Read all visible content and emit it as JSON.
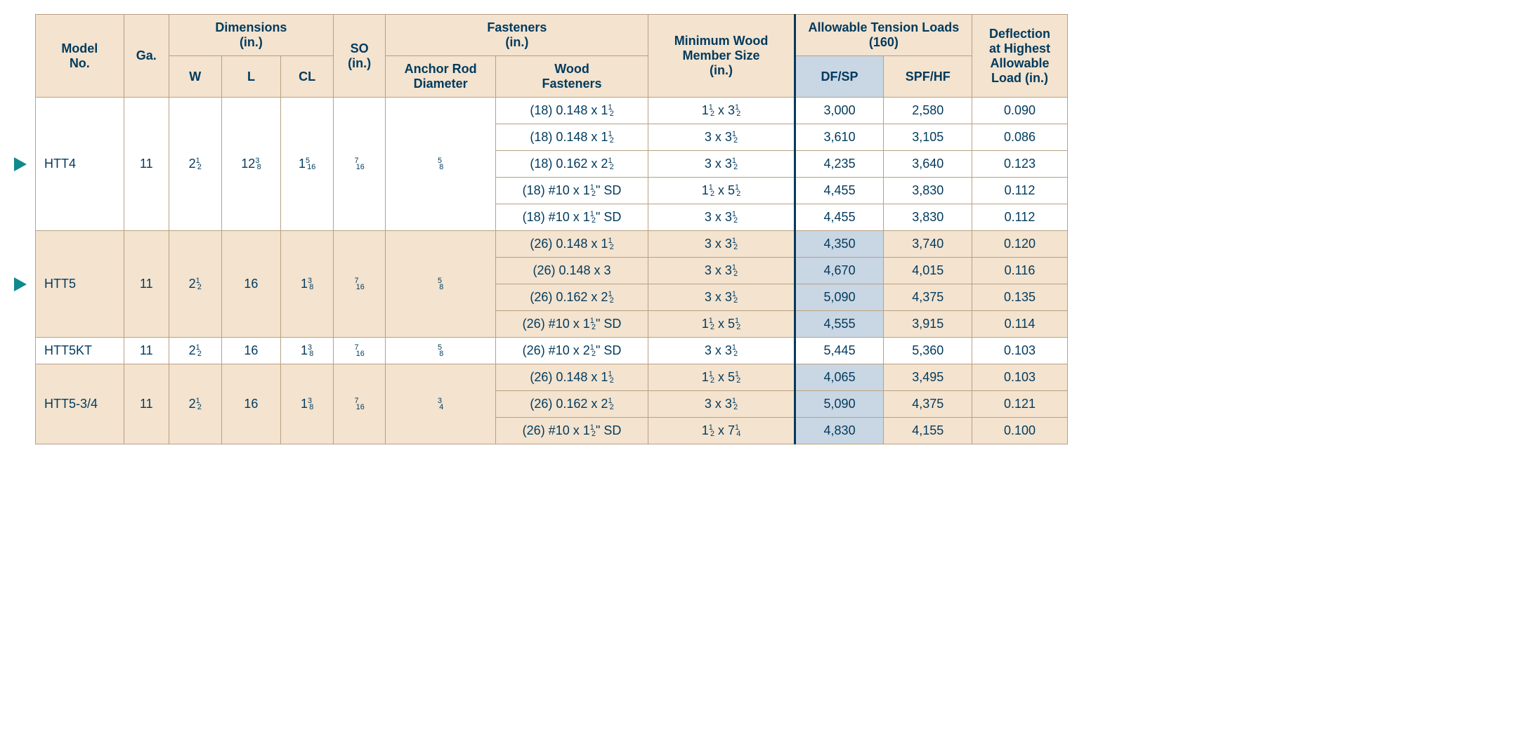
{
  "table": {
    "background_header": "#f3e3cf",
    "highlight_color": "#c9d6e3",
    "border_color": "#b9a082",
    "text_color": "#003a5d",
    "header": {
      "model": "Model\nNo.",
      "ga": "Ga.",
      "dimensions": "Dimensions\n(in.)",
      "w": "W",
      "l": "L",
      "cl": "CL",
      "so": "SO\n(in.)",
      "fasteners": "Fasteners\n(in.)",
      "anchor": "Anchor Rod\nDiameter",
      "wood_fast": "Wood\nFasteners",
      "min_wood": "Minimum Wood\nMember Size\n(in.)",
      "loads": "Allowable Tension Loads\n(160)",
      "dfsp": "DF/SP",
      "spfhf": "SPF/HF",
      "deflection": "Deflection\nat Highest\nAllowable\nLoad (in.)"
    },
    "groups": [
      {
        "model": "HTT4",
        "ga": "11",
        "w": "2½",
        "l": "12⅜",
        "cl": "1 5/16",
        "so": "7/16",
        "anchor": "⅝",
        "band": false,
        "arrow": true,
        "rows": [
          {
            "wf": "(18) 0.148 x 1½",
            "mw": "1½ x 3½",
            "df": "3,000",
            "spf": "2,580",
            "defl": "0.090",
            "hl": false
          },
          {
            "wf": "(18) 0.148 x 1½",
            "mw": "3 x 3½",
            "df": "3,610",
            "spf": "3,105",
            "defl": "0.086",
            "hl": false
          },
          {
            "wf": "(18) 0.162 x 2½",
            "mw": "3 x 3½",
            "df": "4,235",
            "spf": "3,640",
            "defl": "0.123",
            "hl": false
          },
          {
            "wf": "(18) #10 x 1½\" SD",
            "mw": "1½ x 5½",
            "df": "4,455",
            "spf": "3,830",
            "defl": "0.112",
            "hl": false
          },
          {
            "wf": "(18) #10 x 1½\" SD",
            "mw": "3 x 3½",
            "df": "4,455",
            "spf": "3,830",
            "defl": "0.112",
            "hl": false
          }
        ]
      },
      {
        "model": "HTT5",
        "ga": "11",
        "w": "2½",
        "l": "16",
        "cl": "1⅜",
        "so": "7/16",
        "anchor": "⅝",
        "band": true,
        "arrow": true,
        "rows": [
          {
            "wf": "(26) 0.148 x 1½",
            "mw": "3 x 3½",
            "df": "4,350",
            "spf": "3,740",
            "defl": "0.120",
            "hl": true
          },
          {
            "wf": "(26) 0.148 x 3",
            "mw": "3 x 3½",
            "df": "4,670",
            "spf": "4,015",
            "defl": "0.116",
            "hl": true
          },
          {
            "wf": "(26) 0.162 x 2½",
            "mw": "3 x 3½",
            "df": "5,090",
            "spf": "4,375",
            "defl": "0.135",
            "hl": true
          },
          {
            "wf": "(26) #10 x 1½\" SD",
            "mw": "1½ x 5½",
            "df": "4,555",
            "spf": "3,915",
            "defl": "0.114",
            "hl": true
          }
        ]
      },
      {
        "model": "HTT5KT",
        "ga": "11",
        "w": "2½",
        "l": "16",
        "cl": "1⅜",
        "so": "7/16",
        "anchor": "⅝",
        "band": false,
        "arrow": false,
        "rows": [
          {
            "wf": "(26) #10 x 2½\" SD",
            "mw": "3 x 3½",
            "df": "5,445",
            "spf": "5,360",
            "defl": "0.103",
            "hl": false
          }
        ]
      },
      {
        "model": "HTT5-3/4",
        "ga": "11",
        "w": "2½",
        "l": "16",
        "cl": "1⅜",
        "so": "7/16",
        "anchor": "¾",
        "band": true,
        "arrow": false,
        "rows": [
          {
            "wf": "(26) 0.148 x 1½",
            "mw": "1½ x 5½",
            "df": "4,065",
            "spf": "3,495",
            "defl": "0.103",
            "hl": true
          },
          {
            "wf": "(26) 0.162 x 2½",
            "mw": "3 x 3½",
            "df": "5,090",
            "spf": "4,375",
            "defl": "0.121",
            "hl": true
          },
          {
            "wf": "(26) #10 x 1½\" SD",
            "mw": "1½ x 7¼",
            "df": "4,830",
            "spf": "4,155",
            "defl": "0.100",
            "hl": true
          }
        ]
      }
    ]
  }
}
